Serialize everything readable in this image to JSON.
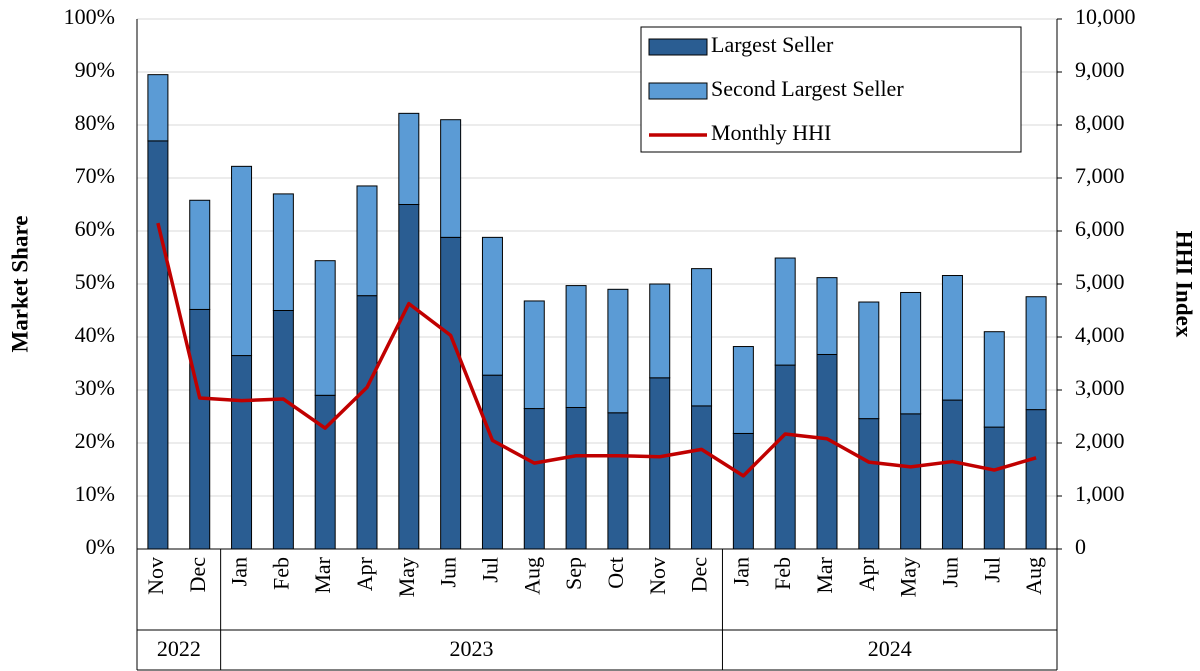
{
  "chart_data": {
    "type": "bar",
    "stacked": true,
    "y_label": "Market Share",
    "y2_label": "HHI Index",
    "categories": [
      "Nov",
      "Dec",
      "Jan",
      "Feb",
      "Mar",
      "Apr",
      "May",
      "Jun",
      "Jul",
      "Aug",
      "Sep",
      "Oct",
      "Nov",
      "Dec",
      "Jan",
      "Feb",
      "Mar",
      "Apr",
      "May",
      "Jun",
      "Jul",
      "Aug"
    ],
    "category_groups": [
      {
        "label": "2022",
        "span": 2
      },
      {
        "label": "2023",
        "span": 12
      },
      {
        "label": "2024",
        "span": 8
      }
    ],
    "series": [
      {
        "name": "Largest Seller",
        "color": "#2a5d92",
        "values": [
          77,
          45.2,
          36.5,
          45,
          29,
          47.8,
          65,
          58.8,
          32.8,
          26.5,
          26.7,
          25.7,
          32.3,
          27,
          21.8,
          34.7,
          36.7,
          24.6,
          25.5,
          28.1,
          23,
          26.3
        ]
      },
      {
        "name": "Second Largest Seller",
        "color": "#5b9bd5",
        "values": [
          12.5,
          20.6,
          35.7,
          22,
          25.4,
          20.7,
          17.2,
          22.2,
          26,
          20.3,
          23,
          23.3,
          17.7,
          25.9,
          16.4,
          20.2,
          14.5,
          22,
          22.9,
          23.5,
          18,
          21.3
        ]
      },
      {
        "name": "Monthly HHI",
        "color": "#c00000",
        "type": "line",
        "axis": "y2",
        "values": [
          6150,
          2850,
          2800,
          2830,
          2280,
          3050,
          4630,
          4030,
          2050,
          1620,
          1760,
          1760,
          1740,
          1880,
          1380,
          2170,
          2080,
          1640,
          1550,
          1650,
          1490,
          1720
        ]
      }
    ],
    "ylim": [
      0,
      100
    ],
    "yticks": [
      {
        "value": 0,
        "label": "0%"
      },
      {
        "value": 10,
        "label": "10%"
      },
      {
        "value": 20,
        "label": "20%"
      },
      {
        "value": 30,
        "label": "30%"
      },
      {
        "value": 40,
        "label": "40%"
      },
      {
        "value": 50,
        "label": "50%"
      },
      {
        "value": 60,
        "label": "60%"
      },
      {
        "value": 70,
        "label": "70%"
      },
      {
        "value": 80,
        "label": "80%"
      },
      {
        "value": 90,
        "label": "90%"
      },
      {
        "value": 100,
        "label": "100%"
      }
    ],
    "y2lim": [
      0,
      10000
    ],
    "y2ticks": [
      0,
      {
        "value": 1000,
        "label": "1,000"
      },
      {
        "value": 2000,
        "label": "2,000"
      },
      {
        "value": 3000,
        "label": "3,000"
      },
      {
        "value": 4000,
        "label": "4,000"
      },
      {
        "value": 5000,
        "label": "5,000"
      },
      {
        "value": 6000,
        "label": "6,000"
      },
      {
        "value": 7000,
        "label": "7,000"
      },
      {
        "value": 8000,
        "label": "8,000"
      },
      {
        "value": 9000,
        "label": "9,000"
      },
      {
        "value": 10000,
        "label": "10,000"
      }
    ],
    "grid": true,
    "legend": "top-right"
  }
}
